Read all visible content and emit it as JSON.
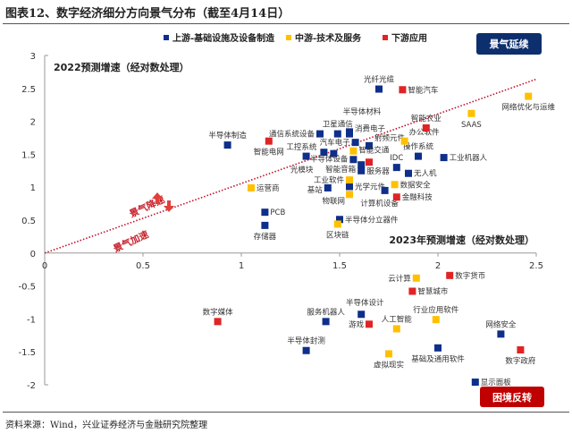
{
  "title": "图表12、数字经济细分方向景气分布（截至4月14日）",
  "source": "资料来源：Wind，兴业证券经济与金融研究院整理",
  "colors": {
    "upstream": "#0e2f8a",
    "midstream": "#ffc000",
    "downstream": "#e02424",
    "trend": "#c0102a"
  },
  "annotations": {
    "top_right_box": "景气延续",
    "bottom_right_box": "困境反转",
    "above_line": "景气降速",
    "below_line": "景气加速"
  },
  "chart_data": {
    "type": "scatter",
    "ylabel": "2022预测增速（经对数处理）",
    "xlabel": "2023年预测增速（经对数处理）",
    "xlim": [
      0,
      2.5
    ],
    "ylim": [
      -2,
      3
    ],
    "xticks": [
      "0",
      "0.5",
      "1",
      "1.5",
      "2",
      "2.5"
    ],
    "yticks": [
      "3",
      "2.5",
      "2",
      "1.5",
      "1",
      "0.5",
      "0",
      "-0.5",
      "-1",
      "-1.5",
      "-2"
    ],
    "grid": false,
    "legend_position": "top",
    "trend_line": {
      "style": "dotted",
      "from": [
        0,
        0
      ],
      "to": [
        2.5,
        2.64
      ]
    },
    "series": [
      {
        "name": "上游-基础设施及设备制造",
        "color": "#0e2f8a",
        "points": [
          {
            "label": "光纤光缆",
            "x": 1.7,
            "y": 2.49,
            "pos": "above"
          },
          {
            "label": "半导体制造",
            "x": 0.93,
            "y": 1.64,
            "pos": "above"
          },
          {
            "label": "通信系统设备",
            "x": 1.4,
            "y": 1.81,
            "pos": "left"
          },
          {
            "label": "卫星通信",
            "x": 1.49,
            "y": 1.81,
            "pos": "above"
          },
          {
            "label": "半导体材料",
            "x": 1.55,
            "y": 1.84,
            "pos": "above"
          },
          {
            "label": "消费电子",
            "x": 1.55,
            "y": 1.81,
            "pos": "right"
          },
          {
            "label": "汽车电子",
            "x": 1.58,
            "y": 1.68,
            "pos": "left"
          },
          {
            "label": "射频元件",
            "x": 1.65,
            "y": 1.63,
            "pos": "right"
          },
          {
            "label": "操作系统",
            "x": 1.9,
            "y": 1.47,
            "pos": "above"
          },
          {
            "label": "工业机器人",
            "x": 2.03,
            "y": 1.45,
            "pos": "right"
          },
          {
            "label": "工控系统",
            "x": 1.42,
            "y": 1.53,
            "pos": "left"
          },
          {
            "label": "",
            "x": 1.47,
            "y": 1.51,
            "pos": "right"
          },
          {
            "label": "光模块",
            "x": 1.33,
            "y": 1.47,
            "pos": "below"
          },
          {
            "label": "半导体设备",
            "x": 1.57,
            "y": 1.42,
            "pos": "left"
          },
          {
            "label": "智能音箱",
            "x": 1.61,
            "y": 1.34,
            "pos": "left"
          },
          {
            "label": "服务器",
            "x": 1.61,
            "y": 1.25,
            "pos": "right"
          },
          {
            "label": "IDC",
            "x": 1.79,
            "y": 1.3,
            "pos": "above"
          },
          {
            "label": "无人机",
            "x": 1.85,
            "y": 1.21,
            "pos": "right"
          },
          {
            "label": "基站",
            "x": 1.44,
            "y": 0.99,
            "pos": "left"
          },
          {
            "label": "光学元件",
            "x": 1.55,
            "y": 1.01,
            "pos": "right"
          },
          {
            "label": "计算机设备",
            "x": 1.73,
            "y": 0.95,
            "pos": "below"
          },
          {
            "label": "PCB",
            "x": 1.12,
            "y": 0.62,
            "pos": "right"
          },
          {
            "label": "存储器",
            "x": 1.12,
            "y": 0.42,
            "pos": "below"
          },
          {
            "label": "半导体分立器件",
            "x": 1.5,
            "y": 0.51,
            "pos": "right"
          },
          {
            "label": "服务机器人",
            "x": 1.43,
            "y": -1.04,
            "pos": "above"
          },
          {
            "label": "半导体设计",
            "x": 1.61,
            "y": -0.93,
            "pos": "above"
          },
          {
            "label": "网络安全",
            "x": 2.32,
            "y": -1.23,
            "pos": "above"
          },
          {
            "label": "半导体封测",
            "x": 1.33,
            "y": -1.48,
            "pos": "above"
          },
          {
            "label": "基础及通用软件",
            "x": 2.0,
            "y": -1.44,
            "pos": "below"
          },
          {
            "label": "显示面板",
            "x": 2.19,
            "y": -1.96,
            "pos": "right"
          }
        ]
      },
      {
        "name": "中游-技术及服务",
        "color": "#ffc000",
        "points": [
          {
            "label": "网络优化与运维",
            "x": 2.46,
            "y": 2.38,
            "pos": "below"
          },
          {
            "label": "SAAS",
            "x": 2.17,
            "y": 2.12,
            "pos": "below"
          },
          {
            "label": "办公软件",
            "x": 1.83,
            "y": 1.7,
            "pos": "above"
          },
          {
            "label": "智能交通",
            "x": 1.57,
            "y": 1.55,
            "pos": "right"
          },
          {
            "label": "工业软件",
            "x": 1.55,
            "y": 1.11,
            "pos": "above"
          },
          {
            "label": "物联网",
            "x": 1.55,
            "y": 0.89,
            "pos": "below"
          },
          {
            "label": "数据安全",
            "x": 1.78,
            "y": 1.04,
            "pos": "right"
          },
          {
            "label": "运营商",
            "x": 1.05,
            "y": 0.99,
            "pos": "right"
          },
          {
            "label": "区块链",
            "x": 1.49,
            "y": 0.44,
            "pos": "below"
          },
          {
            "label": "云计算",
            "x": 1.89,
            "y": -0.38,
            "pos": "left"
          },
          {
            "label": "人工智能",
            "x": 1.79,
            "y": -1.15,
            "pos": "above"
          },
          {
            "label": "行业应用软件",
            "x": 1.99,
            "y": -1.01,
            "pos": "above"
          },
          {
            "label": "虚拟现实",
            "x": 1.75,
            "y": -1.53,
            "pos": "below"
          }
        ]
      },
      {
        "name": "下游应用",
        "color": "#e02424",
        "points": [
          {
            "label": "智能汽车",
            "x": 1.82,
            "y": 2.48,
            "pos": "right"
          },
          {
            "label": "智能农业",
            "x": 1.94,
            "y": 1.9,
            "pos": "above"
          },
          {
            "label": "智能电网",
            "x": 1.14,
            "y": 1.7,
            "pos": "below"
          },
          {
            "label": "",
            "x": 1.65,
            "y": 1.38,
            "pos": "right"
          },
          {
            "label": "金融科技",
            "x": 1.79,
            "y": 0.85,
            "pos": "right"
          },
          {
            "label": "数字货币",
            "x": 2.06,
            "y": -0.34,
            "pos": "right"
          },
          {
            "label": "智慧城市",
            "x": 1.87,
            "y": -0.58,
            "pos": "right"
          },
          {
            "label": "数字媒体",
            "x": 0.88,
            "y": -1.04,
            "pos": "above"
          },
          {
            "label": "游戏",
            "x": 1.65,
            "y": -1.08,
            "pos": "left"
          },
          {
            "label": "数字政府",
            "x": 2.42,
            "y": -1.47,
            "pos": "below"
          }
        ]
      }
    ]
  }
}
